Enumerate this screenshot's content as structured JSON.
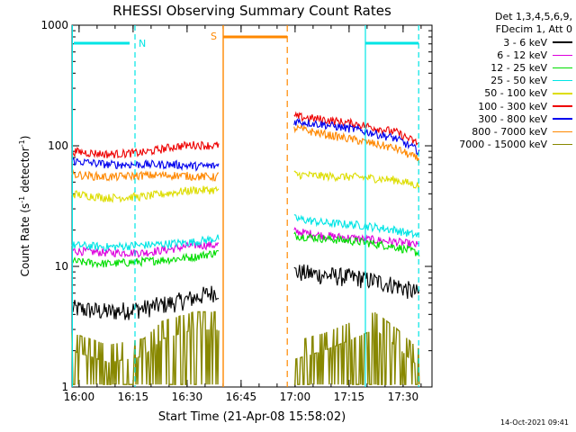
{
  "chart_data": {
    "type": "line",
    "title": "RHESSI Observing Summary Count Rates",
    "xlabel": "Start Time (21-Apr-08 15:58:02)",
    "ylabel": "Count Rate (s",
    "ylabel_mid": "detector",
    "ylabel_end": ")",
    "ylabel_sup": "-1",
    "y_scale": "log",
    "ylim": [
      1,
      1000
    ],
    "y_ticks": [
      "1",
      "10",
      "100",
      "1000"
    ],
    "xlim": [
      0,
      100
    ],
    "x_ticks": [
      {
        "label": "16:00",
        "t": 1.97
      },
      {
        "label": "16:15",
        "t": 16.97
      },
      {
        "label": "16:30",
        "t": 31.97
      },
      {
        "label": "16:45",
        "t": 46.97
      },
      {
        "label": "17:00",
        "t": 61.97
      },
      {
        "label": "17:15",
        "t": 76.97
      },
      {
        "label": "17:30",
        "t": 91.97
      }
    ],
    "gaps": [
      [
        40.8,
        61.7
      ]
    ],
    "night_markers": [
      {
        "label": "N",
        "start": 17.5,
        "end": 96.3,
        "color": "#00e5e5"
      }
    ],
    "saa_markers": [
      {
        "label": "S",
        "start": 42.0,
        "end": 59.8,
        "color": "#ff8800"
      }
    ],
    "series": [
      {
        "name": "3 - 6 keV",
        "color": "#000000",
        "values": [
          [
            0,
            4.5
          ],
          [
            10,
            4.2
          ],
          [
            20,
            4.5
          ],
          [
            28,
            5
          ],
          [
            34,
            5.5
          ],
          [
            40,
            6.2
          ],
          [
            62,
            9
          ],
          [
            70,
            8.5
          ],
          [
            80,
            8
          ],
          [
            90,
            7
          ],
          [
            96,
            6
          ]
        ]
      },
      {
        "name": "6 - 12 keV",
        "color": "#dd00dd",
        "values": [
          [
            0,
            13.5
          ],
          [
            10,
            13
          ],
          [
            20,
            13
          ],
          [
            28,
            14
          ],
          [
            34,
            15
          ],
          [
            40,
            15
          ],
          [
            62,
            19.5
          ],
          [
            70,
            18
          ],
          [
            80,
            17
          ],
          [
            90,
            16
          ],
          [
            96,
            15
          ]
        ]
      },
      {
        "name": "12 - 25 keV",
        "color": "#00dd00",
        "values": [
          [
            0,
            11
          ],
          [
            10,
            10.5
          ],
          [
            20,
            11
          ],
          [
            28,
            11.5
          ],
          [
            34,
            12
          ],
          [
            40,
            13
          ],
          [
            62,
            18
          ],
          [
            70,
            17
          ],
          [
            80,
            16
          ],
          [
            90,
            14.5
          ],
          [
            96,
            13
          ]
        ]
      },
      {
        "name": "25 - 50 keV",
        "color": "#00e5e5",
        "values": [
          [
            0,
            15
          ],
          [
            10,
            14.5
          ],
          [
            20,
            15
          ],
          [
            28,
            15.5
          ],
          [
            34,
            16
          ],
          [
            40,
            17
          ],
          [
            62,
            25
          ],
          [
            70,
            23
          ],
          [
            80,
            22
          ],
          [
            90,
            20
          ],
          [
            96,
            18
          ]
        ]
      },
      {
        "name": "50 - 100 keV",
        "color": "#dddd00",
        "values": [
          [
            0,
            40
          ],
          [
            10,
            37
          ],
          [
            20,
            38
          ],
          [
            28,
            41
          ],
          [
            34,
            43
          ],
          [
            40,
            43
          ],
          [
            62,
            58
          ],
          [
            70,
            56
          ],
          [
            80,
            55
          ],
          [
            90,
            52
          ],
          [
            96,
            47
          ]
        ]
      },
      {
        "name": "100 - 300 keV",
        "color": "#ee0000",
        "values": [
          [
            0,
            90
          ],
          [
            10,
            85
          ],
          [
            20,
            88
          ],
          [
            28,
            98
          ],
          [
            34,
            102
          ],
          [
            40,
            100
          ],
          [
            62,
            175
          ],
          [
            70,
            165
          ],
          [
            80,
            150
          ],
          [
            90,
            130
          ],
          [
            96,
            105
          ]
        ]
      },
      {
        "name": "300 - 800 keV",
        "color": "#0000ee",
        "values": [
          [
            0,
            75
          ],
          [
            10,
            70
          ],
          [
            20,
            70
          ],
          [
            28,
            70
          ],
          [
            34,
            68
          ],
          [
            40,
            68
          ],
          [
            62,
            160
          ],
          [
            70,
            150
          ],
          [
            80,
            135
          ],
          [
            90,
            115
          ],
          [
            96,
            92
          ]
        ]
      },
      {
        "name": "800 - 7000 keV",
        "color": "#ff8800",
        "values": [
          [
            0,
            58
          ],
          [
            10,
            55
          ],
          [
            20,
            57
          ],
          [
            28,
            57
          ],
          [
            34,
            56
          ],
          [
            40,
            55
          ],
          [
            62,
            140
          ],
          [
            70,
            125
          ],
          [
            80,
            110
          ],
          [
            90,
            95
          ],
          [
            96,
            78
          ]
        ]
      },
      {
        "name": "7000 - 15000 keV",
        "color": "#888800",
        "values": [
          [
            0,
            2
          ],
          [
            10,
            1.6
          ],
          [
            20,
            1.8
          ],
          [
            25,
            2.5
          ],
          [
            34,
            3
          ],
          [
            40,
            3
          ],
          [
            62,
            1.7
          ],
          [
            70,
            2
          ],
          [
            78,
            2.5
          ],
          [
            84,
            3
          ],
          [
            90,
            2.2
          ],
          [
            96,
            1.5
          ]
        ]
      }
    ]
  },
  "legend": {
    "header_line1": "Det 1,3,4,5,6,9,",
    "header_line2": "FDecim 1, Att 0"
  },
  "timestamp": "14-Oct-2021 09:41"
}
